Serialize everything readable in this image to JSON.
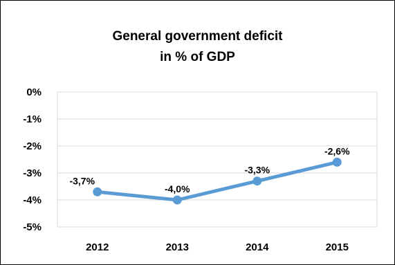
{
  "chart_data": {
    "type": "line",
    "title_lines": [
      "General government deficit",
      "in % of GDP"
    ],
    "categories": [
      "2012",
      "2013",
      "2014",
      "2015"
    ],
    "series": [
      {
        "values": [
          -3.7,
          -4.0,
          -3.3,
          -2.6
        ],
        "data_labels": [
          "-3,7%",
          "-4,0%",
          "-3,3%",
          "-2,6%"
        ]
      }
    ],
    "y_ticks": [
      0,
      -1,
      -2,
      -3,
      -4,
      -5
    ],
    "y_tick_labels": [
      "0%",
      "-1%",
      "-2%",
      "-3%",
      "-4%",
      "-5%"
    ],
    "ylim": [
      -5,
      0
    ],
    "grid": "horizontal",
    "legend": "none",
    "xlabel": "",
    "ylabel": "",
    "colors": {
      "line": "#5b9bd5",
      "marker": "#5b9bd5",
      "grid": "#d9d9d9",
      "frame": "#000000"
    }
  }
}
